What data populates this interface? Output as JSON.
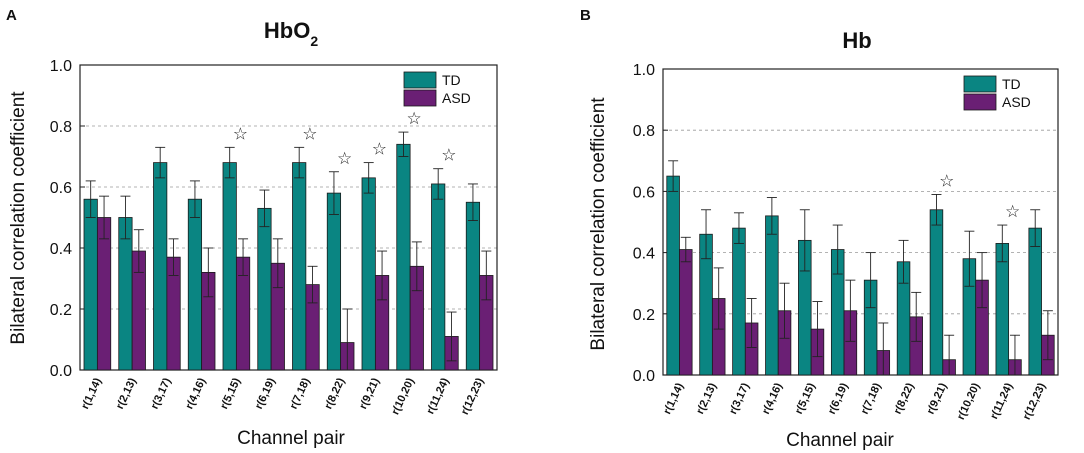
{
  "colors": {
    "td": "#0a8582",
    "asd": "#6a1f74",
    "grid": "#9a9a9a",
    "axis": "#222222"
  },
  "chart_data": [
    {
      "panel": "A",
      "type": "bar",
      "title_main": "HbO",
      "title_sub": "2",
      "xlabel": "Channel pair",
      "ylabel": "Bilateral correlation coefficient",
      "ylim": [
        0,
        1.0
      ],
      "yticks": [
        "0.0",
        "0.2",
        "0.4",
        "0.6",
        "0.8",
        "1.0"
      ],
      "categories": [
        "r(1,14)",
        "r(2,13)",
        "r(3,17)",
        "r(4,16)",
        "r(5,15)",
        "r(6,19)",
        "r(7,18)",
        "r(8,22)",
        "r(9,21)",
        "r(10,20)",
        "r(11,24)",
        "r(12,23)"
      ],
      "series": [
        {
          "name": "TD",
          "values": [
            0.56,
            0.5,
            0.68,
            0.56,
            0.68,
            0.53,
            0.68,
            0.58,
            0.63,
            0.74,
            0.61,
            0.55
          ],
          "errors": [
            0.06,
            0.07,
            0.05,
            0.06,
            0.05,
            0.06,
            0.05,
            0.07,
            0.05,
            0.04,
            0.05,
            0.06
          ]
        },
        {
          "name": "ASD",
          "values": [
            0.5,
            0.39,
            0.37,
            0.32,
            0.37,
            0.35,
            0.28,
            0.09,
            0.31,
            0.34,
            0.11,
            0.31
          ],
          "errors": [
            0.07,
            0.07,
            0.06,
            0.08,
            0.06,
            0.08,
            0.06,
            0.11,
            0.08,
            0.08,
            0.08,
            0.08
          ]
        }
      ],
      "significant": [
        "r(5,15)",
        "r(7,18)",
        "r(8,22)",
        "r(9,21)",
        "r(10,20)",
        "r(11,24)"
      ],
      "significance_symbol": "☆",
      "legend": [
        "TD",
        "ASD"
      ],
      "legend_position": "top-right",
      "grid": true
    },
    {
      "panel": "B",
      "type": "bar",
      "title_main": "Hb",
      "title_sub": "",
      "xlabel": "Channel pair",
      "ylabel": "Bilateral correlation coefficient",
      "ylim": [
        0,
        1.0
      ],
      "yticks": [
        "0.0",
        "0.2",
        "0.4",
        "0.6",
        "0.8",
        "1.0"
      ],
      "categories": [
        "r(1,14)",
        "r(2,13)",
        "r(3,17)",
        "r(4,16)",
        "r(5,15)",
        "r(6,19)",
        "r(7,18)",
        "r(8,22)",
        "r(9,21)",
        "r(10,20)",
        "r(11,24)",
        "r(12,23)"
      ],
      "series": [
        {
          "name": "TD",
          "values": [
            0.65,
            0.46,
            0.48,
            0.52,
            0.44,
            0.41,
            0.31,
            0.37,
            0.54,
            0.38,
            0.43,
            0.48
          ],
          "errors": [
            0.05,
            0.08,
            0.05,
            0.06,
            0.1,
            0.08,
            0.09,
            0.07,
            0.05,
            0.09,
            0.06,
            0.06
          ]
        },
        {
          "name": "ASD",
          "values": [
            0.41,
            0.25,
            0.17,
            0.21,
            0.15,
            0.21,
            0.08,
            0.19,
            0.05,
            0.31,
            0.05,
            0.13
          ],
          "errors": [
            0.04,
            0.1,
            0.08,
            0.09,
            0.09,
            0.1,
            0.09,
            0.08,
            0.08,
            0.09,
            0.08,
            0.08
          ]
        }
      ],
      "significant": [
        "r(9,21)",
        "r(11,24)"
      ],
      "significance_symbol": "☆",
      "legend": [
        "TD",
        "ASD"
      ],
      "legend_position": "top-right",
      "grid": true
    }
  ]
}
